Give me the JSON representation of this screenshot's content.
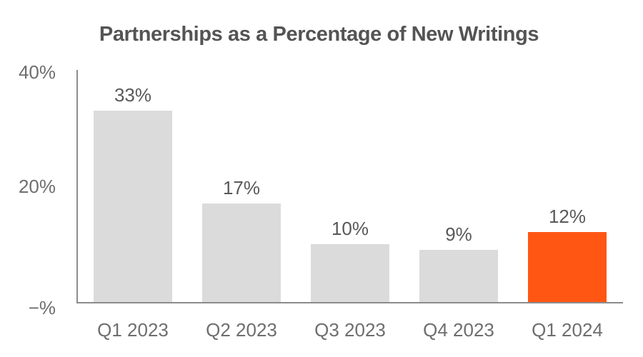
{
  "chart_data": {
    "type": "bar",
    "title": "Partnerships as a Percentage of New Writings",
    "categories": [
      "Q1 2023",
      "Q2 2023",
      "Q3 2023",
      "Q4 2023",
      "Q1 2024"
    ],
    "values": [
      33,
      17,
      10,
      9,
      12
    ],
    "value_labels": [
      "33%",
      "17%",
      "10%",
      "9%",
      "12%"
    ],
    "y_tick_labels": [
      "40%",
      "20%",
      "−%"
    ],
    "y_tick_values": [
      40,
      20,
      0
    ],
    "ylim": [
      0,
      40
    ],
    "unit": "%",
    "xlabel": "",
    "ylabel": "",
    "grid": false,
    "legend": false,
    "highlight_index": 4,
    "colors": {
      "bar_default": "#dbdbdb",
      "bar_highlight": "#ff5614",
      "title_text": "#545454",
      "tick_text": "#6e6e6e",
      "value_label_text": "#595959",
      "axis_line": "#8c8c8c"
    }
  }
}
